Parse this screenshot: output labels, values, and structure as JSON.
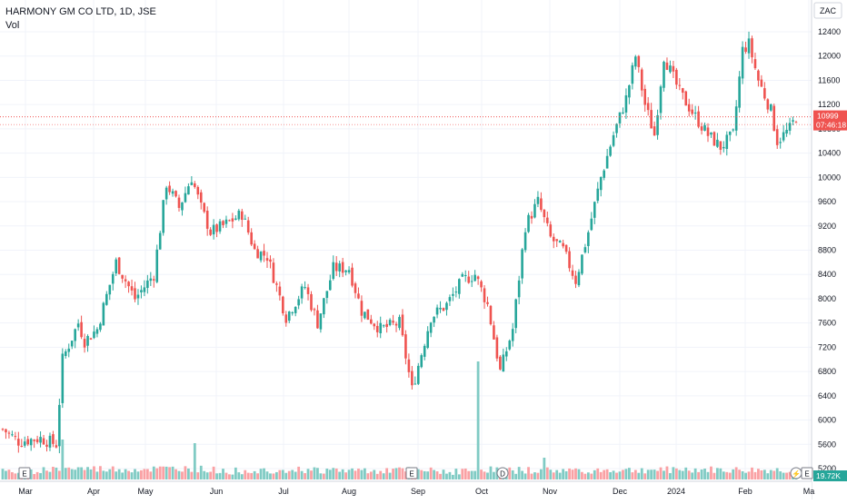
{
  "header": {
    "symbol": "HARMONY GM CO LTD, 1D, JSE",
    "volume_label": "Vol"
  },
  "price_axis": {
    "currency": "ZAC",
    "ticks": [
      "12400",
      "12000",
      "11600",
      "11200",
      "10800",
      "10400",
      "10000",
      "9600",
      "9200",
      "8800",
      "8400",
      "8000",
      "7600",
      "7200",
      "6800",
      "6400",
      "6000",
      "5600",
      "5200"
    ]
  },
  "time_axis": {
    "labels": [
      "Mar",
      "Apr",
      "May",
      "Jun",
      "Jul",
      "Aug",
      "Sep",
      "Oct",
      "Nov",
      "Dec",
      "2024",
      "Feb",
      "Ma"
    ]
  },
  "last_price": {
    "value": "10999",
    "countdown": "07:46:18"
  },
  "volume_readout": "19.72K",
  "markers": {
    "earnings": "E",
    "dividend": "D",
    "split": "⚡"
  },
  "colors": {
    "up": "#26a69a",
    "down": "#ef5350",
    "up_vol": "#80cbc4",
    "down_vol": "#faa1a4",
    "grid": "#f0f3fa",
    "last_line": "#ef5350"
  },
  "chart_data": {
    "type": "candlestick",
    "title": "HARMONY GM CO LTD, 1D, JSE",
    "ylim": [
      5150,
      12550
    ],
    "grid": true,
    "anchors": [
      [
        0,
        5850
      ],
      [
        5,
        5650
      ],
      [
        12,
        5700
      ],
      [
        17,
        5600
      ],
      [
        19,
        7000
      ],
      [
        24,
        7600
      ],
      [
        26,
        7300
      ],
      [
        30,
        7500
      ],
      [
        36,
        8600
      ],
      [
        42,
        8000
      ],
      [
        48,
        8400
      ],
      [
        52,
        9900
      ],
      [
        56,
        9500
      ],
      [
        60,
        10000
      ],
      [
        63,
        9500
      ],
      [
        66,
        9100
      ],
      [
        70,
        9200
      ],
      [
        76,
        9400
      ],
      [
        80,
        8800
      ],
      [
        84,
        8700
      ],
      [
        90,
        7700
      ],
      [
        96,
        8200
      ],
      [
        100,
        7600
      ],
      [
        105,
        8500
      ],
      [
        110,
        8500
      ],
      [
        114,
        7800
      ],
      [
        120,
        7500
      ],
      [
        126,
        7600
      ],
      [
        130,
        6500
      ],
      [
        136,
        7700
      ],
      [
        141,
        7900
      ],
      [
        146,
        8300
      ],
      [
        150,
        8400
      ],
      [
        154,
        7900
      ],
      [
        158,
        6800
      ],
      [
        162,
        7500
      ],
      [
        166,
        9200
      ],
      [
        170,
        9600
      ],
      [
        174,
        9000
      ],
      [
        178,
        8800
      ],
      [
        182,
        8300
      ],
      [
        186,
        9100
      ],
      [
        190,
        10000
      ],
      [
        194,
        10700
      ],
      [
        198,
        11300
      ],
      [
        201,
        12000
      ],
      [
        204,
        11200
      ],
      [
        207,
        10700
      ],
      [
        210,
        12000
      ],
      [
        215,
        11400
      ],
      [
        220,
        11000
      ],
      [
        224,
        10700
      ],
      [
        228,
        10500
      ],
      [
        232,
        10700
      ],
      [
        235,
        12100
      ],
      [
        237,
        12200
      ],
      [
        240,
        11600
      ],
      [
        244,
        11100
      ],
      [
        246,
        10600
      ],
      [
        250,
        10800
      ],
      [
        252,
        10999
      ]
    ],
    "volume_anchors": [
      [
        0,
        4
      ],
      [
        20,
        8
      ],
      [
        40,
        7
      ],
      [
        60,
        8
      ],
      [
        72,
        5
      ],
      [
        90,
        7
      ],
      [
        105,
        6
      ],
      [
        125,
        6
      ],
      [
        140,
        5
      ],
      [
        150,
        5
      ],
      [
        151,
        17
      ],
      [
        152,
        7
      ],
      [
        165,
        6
      ],
      [
        185,
        6
      ],
      [
        200,
        6
      ],
      [
        215,
        7
      ],
      [
        230,
        6
      ],
      [
        252,
        6
      ]
    ]
  }
}
